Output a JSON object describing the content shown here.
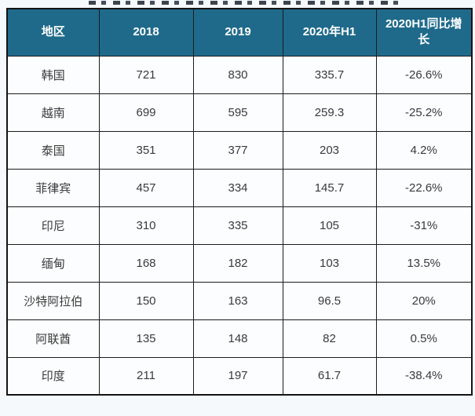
{
  "header_style": {
    "header_bg": "#1f6a8b",
    "header_text_color": "#ffffff",
    "border_color": "#1b1b1b",
    "cell_bg": "#fbfdfe",
    "cell_text_color": "#3a3a3a"
  },
  "chart_data": {
    "type": "table",
    "title": "",
    "columns": [
      "地区",
      "2018",
      "2019",
      "2020年H1",
      "2020H1同比增长"
    ],
    "rows": [
      [
        "韩国",
        "721",
        "830",
        "335.7",
        "-26.6%"
      ],
      [
        "越南",
        "699",
        "595",
        "259.3",
        "-25.2%"
      ],
      [
        "泰国",
        "351",
        "377",
        "203",
        "4.2%"
      ],
      [
        "菲律宾",
        "457",
        "334",
        "145.7",
        "-22.6%"
      ],
      [
        "印尼",
        "310",
        "335",
        "105",
        "-31%"
      ],
      [
        "缅甸",
        "168",
        "182",
        "103",
        "13.5%"
      ],
      [
        "沙特阿拉伯",
        "150",
        "163",
        "96.5",
        "20%"
      ],
      [
        "阿联酋",
        "135",
        "148",
        "82",
        "0.5%"
      ],
      [
        "印度",
        "211",
        "197",
        "61.7",
        "-38.4%"
      ]
    ]
  }
}
